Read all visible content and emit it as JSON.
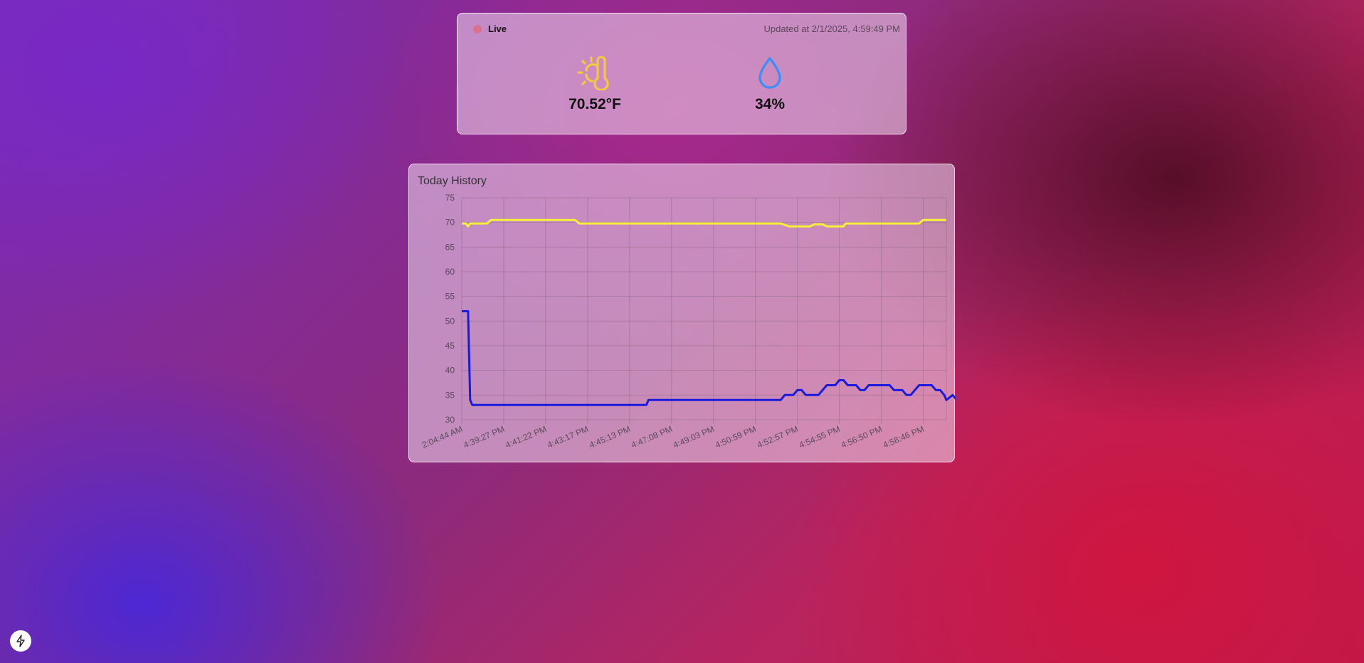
{
  "status": {
    "live_label": "Live",
    "updated_text": "Updated at 2/1/2025, 4:59:49 PM"
  },
  "metrics": {
    "temperature": {
      "value": "70.52°F",
      "icon": "sun-thermometer-icon",
      "color": "#f5c842"
    },
    "humidity": {
      "value": "34%",
      "icon": "water-drop-icon",
      "color": "#3d8ef5"
    }
  },
  "history": {
    "title": "Today History"
  },
  "chart_data": {
    "type": "line",
    "title": "Today History",
    "ylim": [
      30,
      75
    ],
    "yticks": [
      30,
      35,
      40,
      45,
      50,
      55,
      60,
      65,
      70,
      75
    ],
    "grid": true,
    "x_tick_labels": [
      "2:04:44 AM",
      "4:39:27 PM",
      "4:41:22 PM",
      "4:43:17 PM",
      "4:45:13 PM",
      "4:47:08 PM",
      "4:49:03 PM",
      "4:50:59 PM",
      "4:52:57 PM",
      "4:54:55 PM",
      "4:56:50 PM",
      "4:58:46 PM"
    ],
    "series": [
      {
        "color": "#f5f03a",
        "points": [
          [
            0,
            69.8
          ],
          [
            0.1,
            69.8
          ],
          [
            0.15,
            69.2
          ],
          [
            0.2,
            69.8
          ],
          [
            0.6,
            69.8
          ],
          [
            0.7,
            70.5
          ],
          [
            2.7,
            70.5
          ],
          [
            2.8,
            69.8
          ],
          [
            7.6,
            69.8
          ],
          [
            7.8,
            69.2
          ],
          [
            8.3,
            69.2
          ],
          [
            8.4,
            69.6
          ],
          [
            8.6,
            69.6
          ],
          [
            8.7,
            69.2
          ],
          [
            9.1,
            69.2
          ],
          [
            9.15,
            69.8
          ],
          [
            10.9,
            69.8
          ],
          [
            11.0,
            70.5
          ],
          [
            11.55,
            70.5
          ]
        ]
      },
      {
        "color": "#1a1adf",
        "points": [
          [
            0,
            52
          ],
          [
            0.15,
            52
          ],
          [
            0.2,
            34
          ],
          [
            0.25,
            33
          ],
          [
            4.4,
            33
          ],
          [
            4.45,
            34
          ],
          [
            7.6,
            34
          ],
          [
            7.7,
            35
          ],
          [
            7.9,
            35
          ],
          [
            8.0,
            36
          ],
          [
            8.1,
            36
          ],
          [
            8.2,
            35
          ],
          [
            8.5,
            35
          ],
          [
            8.6,
            36
          ],
          [
            8.7,
            37
          ],
          [
            8.9,
            37
          ],
          [
            9.0,
            38
          ],
          [
            9.1,
            38
          ],
          [
            9.2,
            37
          ],
          [
            9.4,
            37
          ],
          [
            9.5,
            36
          ],
          [
            9.6,
            36
          ],
          [
            9.7,
            37
          ],
          [
            10.2,
            37
          ],
          [
            10.3,
            36
          ],
          [
            10.5,
            36
          ],
          [
            10.6,
            35
          ],
          [
            10.7,
            35
          ],
          [
            10.8,
            36
          ],
          [
            10.9,
            37
          ],
          [
            11.2,
            37
          ],
          [
            11.3,
            36
          ],
          [
            11.4,
            36
          ],
          [
            11.5,
            35
          ],
          [
            11.7,
            35
          ],
          [
            11.8,
            34
          ],
          [
            11.55,
            34
          ]
        ]
      }
    ]
  },
  "footer": {
    "badge_icon": "lightning-icon"
  }
}
